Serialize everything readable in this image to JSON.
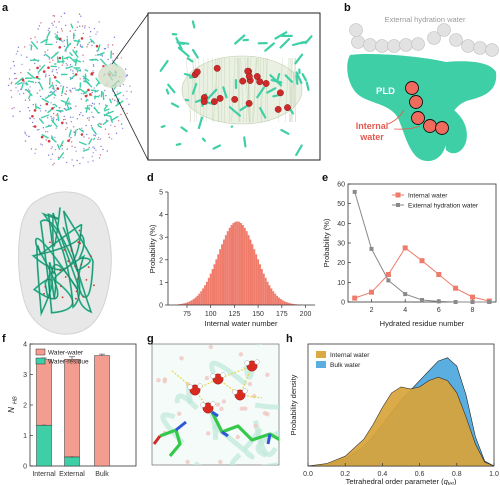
{
  "panels": {
    "a": "a",
    "b": "b",
    "c": "c",
    "d": "d",
    "e": "e",
    "f": "f",
    "g": "g",
    "h": "h"
  },
  "schematic_b": {
    "external_label": "External hydration water",
    "pld_label": "PLD",
    "internal_label_line1": "Internal",
    "internal_label_line2": "water"
  },
  "colors": {
    "protein": "#3fcfa6",
    "water_red": "#e05a4f",
    "bar_salmon": "#ef7b6b",
    "grey": "#8a8a8a",
    "orange_fill": "#d9a43a",
    "blue_fill": "#5aaee0",
    "light_gray_ball": "#dcdcdc"
  },
  "chart_data": [
    {
      "panel": "d",
      "type": "bar",
      "title": "",
      "xlabel": "Internal water number",
      "ylabel": "Probability (%)",
      "xlim": [
        55,
        210
      ],
      "ylim": [
        0,
        5
      ],
      "xticks": [
        "75",
        "100",
        "125",
        "150",
        "175",
        "200"
      ],
      "yticks": [
        "0",
        "1",
        "2",
        "3",
        "4",
        "5"
      ],
      "gaussian_approx": {
        "mean": 128,
        "sd": 20,
        "peak_percent": 3.7
      },
      "bin_range": [
        65,
        205
      ]
    },
    {
      "panel": "e",
      "type": "line",
      "xlabel": "Hydrated residue number",
      "ylabel": "Probability (%)",
      "xlim": [
        0.6,
        9.4
      ],
      "ylim": [
        0,
        60
      ],
      "xticks": [
        "2",
        "4",
        "6",
        "8"
      ],
      "yticks": [
        "0",
        "10",
        "20",
        "30",
        "40",
        "50",
        "60"
      ],
      "series": [
        {
          "name": "Internal water",
          "x": [
            1,
            2,
            3,
            4,
            5,
            6,
            7,
            8,
            9
          ],
          "y": [
            2,
            5,
            14,
            27.5,
            21,
            14,
            7,
            2.5,
            0.5
          ]
        },
        {
          "name": "External hydration water",
          "x": [
            1,
            2,
            3,
            4,
            5,
            6,
            7,
            8,
            9
          ],
          "y": [
            56,
            27,
            11,
            4,
            1,
            0.3,
            0,
            0,
            0
          ]
        }
      ]
    },
    {
      "panel": "f",
      "type": "bar",
      "ylabel_main": "N",
      "ylabel_sub": "HB",
      "categories": [
        "Internal",
        "External",
        "Bulk"
      ],
      "ylim": [
        0,
        4
      ],
      "yticks": [
        "0",
        "1",
        "2",
        "3",
        "4"
      ],
      "series": [
        {
          "name": "Water-water",
          "values": [
            2.15,
            3.2,
            3.62
          ]
        },
        {
          "name": "Water-residue",
          "values": [
            1.34,
            0.3,
            0.0
          ]
        }
      ],
      "error": [
        0.05,
        0.08,
        0.05
      ]
    },
    {
      "panel": "h",
      "type": "area",
      "xlabel_main": "Tetrahedral order parameter (",
      "xlabel_q": "q",
      "xlabel_sub": "tet",
      "xlabel_end": ")",
      "ylabel": "Probability density",
      "xlim": [
        0,
        1
      ],
      "ylim": [
        0,
        2.5
      ],
      "xticks": [
        "0.0",
        "0.2",
        "0.4",
        "0.6",
        "0.8",
        "1.0"
      ],
      "series": [
        {
          "name": "Internal water",
          "x": [
            0,
            0.1,
            0.2,
            0.3,
            0.35,
            0.4,
            0.45,
            0.5,
            0.55,
            0.6,
            0.65,
            0.7,
            0.75,
            0.8,
            0.85,
            0.9,
            0.95,
            1.0
          ],
          "y": [
            0,
            0.05,
            0.2,
            0.55,
            0.85,
            1.2,
            1.5,
            1.62,
            1.58,
            1.62,
            1.75,
            1.82,
            1.75,
            1.5,
            1.0,
            0.45,
            0.08,
            0
          ]
        },
        {
          "name": "Bulk water",
          "x": [
            0,
            0.1,
            0.2,
            0.3,
            0.35,
            0.4,
            0.45,
            0.5,
            0.55,
            0.6,
            0.65,
            0.7,
            0.75,
            0.8,
            0.85,
            0.9,
            0.95,
            1.0
          ],
          "y": [
            0,
            0.03,
            0.15,
            0.4,
            0.6,
            0.85,
            1.1,
            1.35,
            1.55,
            1.75,
            1.95,
            2.15,
            2.22,
            2.05,
            1.45,
            0.6,
            0.1,
            0
          ]
        }
      ]
    }
  ]
}
